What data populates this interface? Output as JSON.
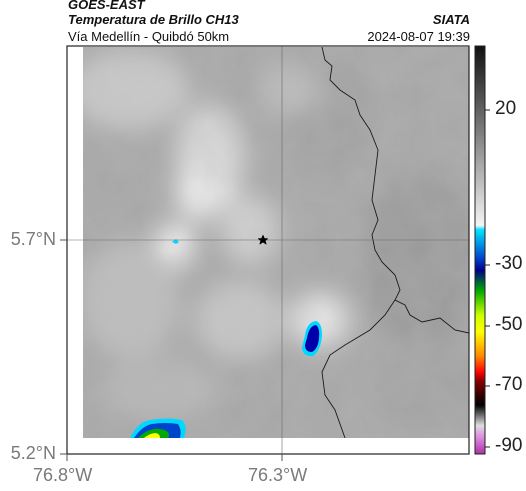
{
  "header": {
    "satellite": "GOES-EAST",
    "product": "Temperatura de Brillo CH13",
    "organization": "SIATA",
    "region": "Vía Medellín - Quibdó 50km",
    "datetime": "2024-08-07 19:39"
  },
  "axes": {
    "lat_labels": [
      "5.7°N",
      "5.2°N"
    ],
    "lon_labels": [
      "76.8°W",
      "76.3°W"
    ]
  },
  "colorbar": {
    "tick_labels": [
      "20",
      "-30",
      "-50",
      "-70",
      "-90"
    ],
    "colors": [
      "#1a1a1a",
      "#ffffff",
      "#00e5ff",
      "#0000aa",
      "#00cc00",
      "#ffff00",
      "#ff0000",
      "#000000",
      "#cc44cc"
    ]
  },
  "marker": {
    "icon": "star-icon"
  }
}
